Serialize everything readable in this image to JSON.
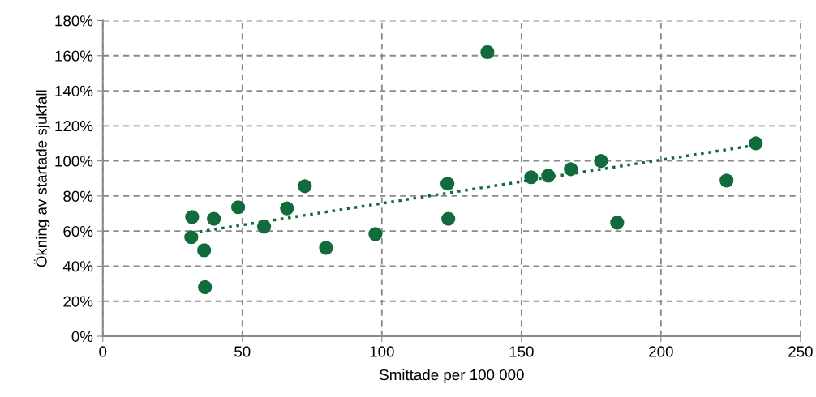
{
  "chart_data": {
    "type": "scatter",
    "xlabel": "Smittade per 100 000",
    "ylabel": "Ökning av startade sjukfall",
    "xlim": [
      0,
      250
    ],
    "xticks": [
      0,
      50,
      100,
      150,
      200,
      250
    ],
    "ylim": [
      0,
      180
    ],
    "yticks": [
      {
        "value": 0,
        "label": "0%"
      },
      {
        "value": 20,
        "label": "20%"
      },
      {
        "value": 40,
        "label": "40%"
      },
      {
        "value": 60,
        "label": "60%"
      },
      {
        "value": 80,
        "label": "80%"
      },
      {
        "value": 100,
        "label": "100%"
      },
      {
        "value": 120,
        "label": "120%"
      },
      {
        "value": 140,
        "label": "140%"
      },
      {
        "value": 160,
        "label": "160%"
      },
      {
        "value": 180,
        "label": "180%"
      }
    ],
    "grid": true,
    "series": [
      {
        "color": "#126b3c",
        "marker": "circle",
        "x": [
          32,
          31.7,
          36.3,
          36.6,
          39.8,
          48.5,
          57.8,
          66,
          72.4,
          80,
          97.7,
          123.5,
          123.8,
          137.8,
          153.5,
          159.6,
          167.7,
          178.5,
          184.3,
          223.5,
          234
        ],
        "values": [
          68,
          56.5,
          49,
          28,
          67,
          73.6,
          62.5,
          73,
          85.6,
          50.4,
          58.3,
          87,
          67,
          162,
          90.7,
          91.6,
          95.3,
          100,
          64.8,
          88.8,
          110
        ]
      },
      {
        "type": "line",
        "color": "#126b3c",
        "marker": "none",
        "line_style": "dotted",
        "x": [
          32,
          234
        ],
        "values": [
          59,
          109
        ]
      }
    ]
  }
}
